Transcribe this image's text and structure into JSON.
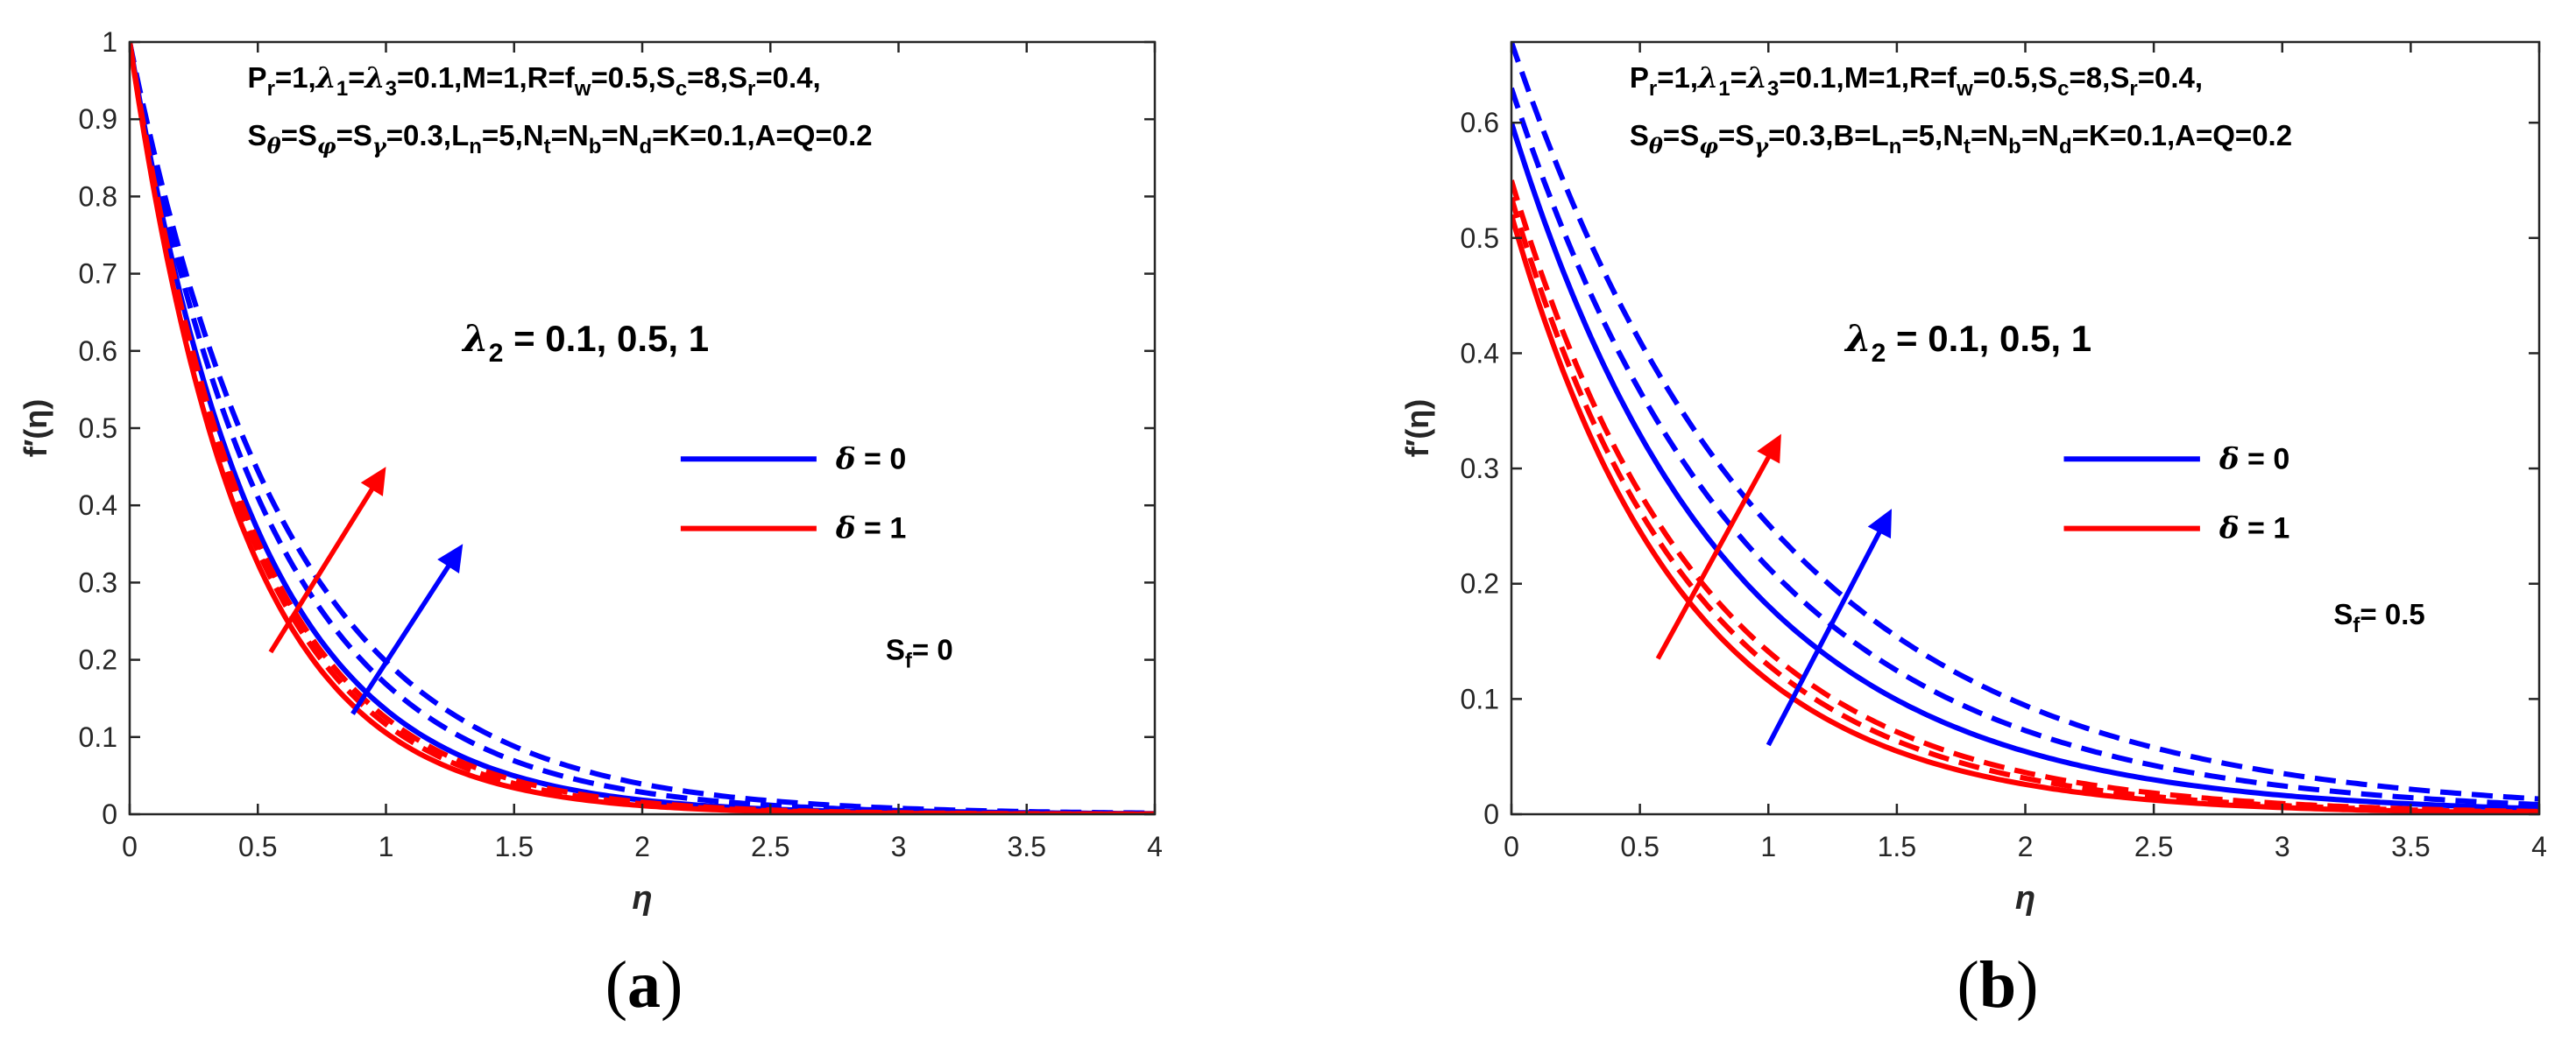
{
  "colors": {
    "blue": "#0000FF",
    "red": "#FF0000",
    "axis": "#262626"
  },
  "chart_data": [
    {
      "type": "line",
      "caption_letter": "a",
      "xlabel": "η",
      "ylabel": "f′(η)",
      "xlim": [
        0,
        4
      ],
      "ylim": [
        0,
        1
      ],
      "xticks": [
        0,
        0.5,
        1,
        1.5,
        2,
        2.5,
        3,
        3.5,
        4
      ],
      "xtick_labels": [
        "0",
        "0.5",
        "1",
        "1.5",
        "2",
        "2.5",
        "3",
        "3.5",
        "4"
      ],
      "yticks": [
        0,
        0.1,
        0.2,
        0.3,
        0.4,
        0.5,
        0.6,
        0.7,
        0.8,
        0.9,
        1
      ],
      "ytick_labels": [
        "0",
        "0.1",
        "0.2",
        "0.3",
        "0.4",
        "0.5",
        "0.6",
        "0.7",
        "0.8",
        "0.9",
        "1"
      ],
      "params_line1": "Pr=1,λ1=λ3=0.1,M=1,R=fw=0.5,Sc=8,Sr=0.4,",
      "params_line2": "Sθ=Sφ=Sγ=0.3,Ln=5,Nt=Nb=Nd=K=0.1,A=Q=0.2",
      "lambda_label": "λ2 = 0.1, 0.5, 1",
      "sf_label": "Sf= 0",
      "legend": [
        {
          "label": "δ = 0",
          "color": "#0000FF"
        },
        {
          "label": "δ = 1",
          "color": "#FF0000"
        }
      ],
      "series": [
        {
          "name": "δ=0, λ2=0.1",
          "color": "#0000FF",
          "dash": false,
          "f0": 1.0,
          "decay": 2.0
        },
        {
          "name": "δ=0, λ2=0.5",
          "color": "#0000FF",
          "dash": true,
          "f0": 1.0,
          "decay": 1.78
        },
        {
          "name": "δ=0, λ2=1",
          "color": "#0000FF",
          "dash": true,
          "f0": 1.0,
          "decay": 1.62
        },
        {
          "name": "δ=1, λ2=0.1",
          "color": "#FF0000",
          "dash": false,
          "f0": 1.0,
          "decay": 2.25
        },
        {
          "name": "δ=1, λ2=0.5",
          "color": "#FF0000",
          "dash": true,
          "f0": 1.0,
          "decay": 2.15
        },
        {
          "name": "δ=1, λ2=1",
          "color": "#FF0000",
          "dash": true,
          "f0": 1.0,
          "decay": 2.08
        }
      ],
      "arrows": [
        {
          "color": "#FF0000",
          "from": [
            0.55,
            0.21
          ],
          "to": [
            1.0,
            0.45
          ]
        },
        {
          "color": "#0000FF",
          "from": [
            0.87,
            0.13
          ],
          "to": [
            1.3,
            0.35
          ]
        }
      ]
    },
    {
      "type": "line",
      "caption_letter": "b",
      "xlabel": "η",
      "ylabel": "f′(η)",
      "xlim": [
        0,
        4
      ],
      "ylim": [
        0,
        0.67
      ],
      "xticks": [
        0,
        0.5,
        1,
        1.5,
        2,
        2.5,
        3,
        3.5,
        4
      ],
      "xtick_labels": [
        "0",
        "0.5",
        "1",
        "1.5",
        "2",
        "2.5",
        "3",
        "3.5",
        "4"
      ],
      "yticks": [
        0,
        0.1,
        0.2,
        0.3,
        0.4,
        0.5,
        0.6
      ],
      "ytick_labels": [
        "0",
        "0.1",
        "0.2",
        "0.3",
        "0.4",
        "0.5",
        "0.6"
      ],
      "params_line1": "Pr=1,λ1=λ3=0.1,M=1,R=fw=0.5,Sc=8,Sr=0.4,",
      "params_line2": "Sθ=Sφ=Sγ=0.3,B=Ln=5,Nt=Nb=Nd=K=0.1,A=Q=0.2",
      "lambda_label": "λ2 = 0.1, 0.5, 1",
      "sf_label": "Sf= 0.5",
      "legend": [
        {
          "label": "δ = 0",
          "color": "#0000FF"
        },
        {
          "label": "δ = 1",
          "color": "#FF0000"
        }
      ],
      "series": [
        {
          "name": "δ=0, λ2=0.1",
          "color": "#0000FF",
          "dash": false,
          "f0": 0.6,
          "decay": 1.2
        },
        {
          "name": "δ=0, λ2=0.5",
          "color": "#0000FF",
          "dash": true,
          "f0": 0.63,
          "decay": 1.08
        },
        {
          "name": "δ=0, λ2=1",
          "color": "#0000FF",
          "dash": true,
          "f0": 0.67,
          "decay": 0.98
        },
        {
          "name": "δ=1, λ2=0.1",
          "color": "#FF0000",
          "dash": false,
          "f0": 0.52,
          "decay": 1.5
        },
        {
          "name": "δ=1, λ2=0.5",
          "color": "#FF0000",
          "dash": true,
          "f0": 0.535,
          "decay": 1.42
        },
        {
          "name": "δ=1, λ2=1",
          "color": "#FF0000",
          "dash": true,
          "f0": 0.55,
          "decay": 1.36
        }
      ],
      "arrows": [
        {
          "color": "#FF0000",
          "from": [
            0.57,
            0.135
          ],
          "to": [
            1.05,
            0.33
          ]
        },
        {
          "color": "#0000FF",
          "from": [
            1.0,
            0.06
          ],
          "to": [
            1.48,
            0.265
          ]
        }
      ]
    }
  ]
}
